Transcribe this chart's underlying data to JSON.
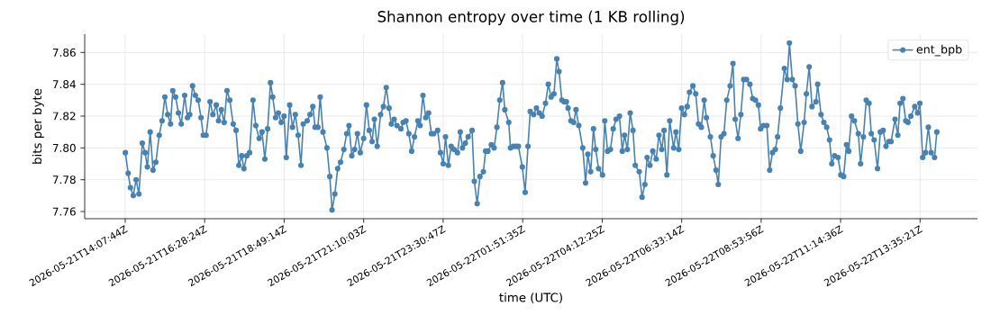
{
  "chart_data": {
    "type": "line",
    "title": "Shannon entropy over time (1 KB rolling)",
    "xlabel": "time (UTC)",
    "ylabel": "bits per byte",
    "x": [
      "2026-05-21T14:08",
      "2026-05-21T14:13",
      "2026-05-21T14:17",
      "2026-05-21T14:22",
      "2026-05-21T14:27",
      "2026-05-21T14:32",
      "2026-05-21T14:38",
      "2026-05-21T14:43",
      "2026-05-21T14:47",
      "2026-05-21T14:52",
      "2026-05-21T14:57",
      "2026-05-21T15:02",
      "2026-05-21T15:08",
      "2026-05-21T15:13",
      "2026-05-21T15:18",
      "2026-05-21T15:23",
      "2026-05-21T15:28",
      "2026-05-21T15:32",
      "2026-05-21T15:37",
      "2026-05-21T15:42",
      "2026-05-21T15:47",
      "2026-05-21T15:53",
      "2026-05-21T15:58",
      "2026-05-21T16:02",
      "2026-05-21T16:07",
      "2026-05-21T16:12",
      "2026-05-21T16:17",
      "2026-05-21T16:22",
      "2026-05-21T16:26",
      "2026-05-21T16:31",
      "2026-05-21T16:38",
      "2026-05-21T16:43",
      "2026-05-21T16:49",
      "2026-05-21T16:53",
      "2026-05-21T16:58",
      "2026-05-21T17:03",
      "2026-05-21T17:08",
      "2026-05-21T17:13",
      "2026-05-21T17:19",
      "2026-05-21T17:24",
      "2026-05-21T17:29",
      "2026-05-21T17:34",
      "2026-05-21T17:38",
      "2026-05-21T17:43",
      "2026-05-21T17:48",
      "2026-05-21T17:54",
      "2026-05-21T17:59",
      "2026-05-21T18:05",
      "2026-05-21T18:10",
      "2026-05-21T18:15",
      "2026-05-21T18:20",
      "2026-05-21T18:25",
      "2026-05-21T18:29",
      "2026-05-21T18:34",
      "2026-05-21T18:39",
      "2026-05-21T18:44",
      "2026-05-21T18:49",
      "2026-05-21T18:53",
      "2026-05-21T18:59",
      "2026-05-21T19:04",
      "2026-05-21T19:09",
      "2026-05-21T19:14",
      "2026-05-21T19:19",
      "2026-05-21T19:23",
      "2026-05-21T19:30",
      "2026-05-21T19:35",
      "2026-05-21T19:40",
      "2026-05-21T19:44",
      "2026-05-21T19:49",
      "2026-05-21T19:53",
      "2026-05-21T19:58",
      "2026-05-21T20:05",
      "2026-05-21T20:10",
      "2026-05-21T20:14",
      "2026-05-21T20:19",
      "2026-05-21T20:24",
      "2026-05-21T20:29",
      "2026-05-21T20:35",
      "2026-05-21T20:40",
      "2026-05-21T20:44",
      "2026-05-21T20:49",
      "2026-05-21T20:54",
      "2026-05-21T20:59",
      "2026-05-21T21:04",
      "2026-05-21T21:10",
      "2026-05-21T21:15",
      "2026-05-21T21:20",
      "2026-05-21T21:25",
      "2026-05-21T21:29",
      "2026-05-21T21:34",
      "2026-05-21T21:40",
      "2026-05-21T21:45",
      "2026-05-21T21:50",
      "2026-05-21T21:55",
      "2026-05-21T21:59",
      "2026-05-21T22:04",
      "2026-05-21T22:09",
      "2026-05-21T22:16",
      "2026-05-21T22:20",
      "2026-05-21T22:25",
      "2026-05-21T22:30",
      "2026-05-21T22:35",
      "2026-05-21T22:40",
      "2026-05-21T22:46",
      "2026-05-21T22:50",
      "2026-05-21T22:55",
      "2026-05-21T23:00",
      "2026-05-21T23:05",
      "2026-05-21T23:10",
      "2026-05-21T23:14",
      "2026-05-21T23:21",
      "2026-05-21T23:26",
      "2026-05-21T23:31",
      "2026-05-21T23:35",
      "2026-05-21T23:40",
      "2026-05-21T23:45",
      "2026-05-21T23:50",
      "2026-05-21T23:56",
      "2026-05-22T00:01",
      "2026-05-22T00:05",
      "2026-05-22T00:10",
      "2026-05-22T00:15",
      "2026-05-22T00:22",
      "2026-05-22T00:26",
      "2026-05-22T00:31",
      "2026-05-22T00:36",
      "2026-05-22T00:42",
      "2026-05-22T00:46",
      "2026-05-22T00:50",
      "2026-05-22T00:56",
      "2026-05-22T01:01",
      "2026-05-22T01:06",
      "2026-05-22T01:11",
      "2026-05-22T01:16",
      "2026-05-22T01:20",
      "2026-05-22T01:27",
      "2026-05-22T01:30",
      "2026-05-22T01:35",
      "2026-05-22T01:40",
      "2026-05-22T01:44",
      "2026-05-22T01:51",
      "2026-05-22T01:56",
      "2026-05-22T02:01",
      "2026-05-22T02:05",
      "2026-05-22T02:11",
      "2026-05-22T02:16",
      "2026-05-22T02:21",
      "2026-05-22T02:26",
      "2026-05-22T02:32",
      "2026-05-22T02:37",
      "2026-05-22T02:42",
      "2026-05-22T02:47",
      "2026-05-22T02:52",
      "2026-05-22T02:56",
      "2026-05-22T03:01",
      "2026-05-22T03:05",
      "2026-05-22T03:09",
      "2026-05-22T03:12",
      "2026-05-22T03:17",
      "2026-05-22T03:22",
      "2026-05-22T03:26",
      "2026-05-22T03:31",
      "2026-05-22T03:38",
      "2026-05-22T03:43",
      "2026-05-22T03:47",
      "2026-05-22T03:52",
      "2026-05-22T03:57",
      "2026-05-22T04:01",
      "2026-05-22T04:06",
      "2026-05-22T04:13",
      "2026-05-22T04:17",
      "2026-05-22T04:22",
      "2026-05-22T04:27",
      "2026-05-22T04:32",
      "2026-05-22T04:37",
      "2026-05-22T04:43",
      "2026-05-22T04:48",
      "2026-05-22T04:52",
      "2026-05-22T04:57",
      "2026-05-22T05:02",
      "2026-05-22T05:07",
      "2026-05-22T05:11",
      "2026-05-22T05:18",
      "2026-05-22T05:23",
      "2026-05-22T05:28",
      "2026-05-22T05:32",
      "2026-05-22T05:37",
      "2026-05-22T05:42",
      "2026-05-22T05:48",
      "2026-05-22T05:53",
      "2026-05-22T05:58",
      "2026-05-22T06:02",
      "2026-05-22T06:07",
      "2026-05-22T06:12",
      "2026-05-22T06:19",
      "2026-05-22T06:23",
      "2026-05-22T06:28",
      "2026-05-22T06:33",
      "2026-05-22T06:38",
      "2026-05-22T06:43",
      "2026-05-22T06:47",
      "2026-05-22T06:53",
      "2026-05-22T06:58",
      "2026-05-22T07:03",
      "2026-05-22T07:08",
      "2026-05-22T07:13",
      "2026-05-22T07:17",
      "2026-05-22T07:24",
      "2026-05-22T07:29",
      "2026-05-22T07:34",
      "2026-05-22T07:38",
      "2026-05-22T07:43",
      "2026-05-22T07:48",
      "2026-05-22T07:53",
      "2026-05-22T07:59",
      "2026-05-22T08:04",
      "2026-05-22T08:08",
      "2026-05-22T08:13",
      "2026-05-22T08:18",
      "2026-05-22T08:23",
      "2026-05-22T08:28",
      "2026-05-22T08:34",
      "2026-05-22T08:39",
      "2026-05-22T08:44",
      "2026-05-22T08:49",
      "2026-05-22T08:53",
      "2026-05-22T08:58",
      "2026-05-22T09:04",
      "2026-05-22T09:09",
      "2026-05-22T09:14",
      "2026-05-22T09:19",
      "2026-05-22T09:23",
      "2026-05-22T09:28",
      "2026-05-22T09:35",
      "2026-05-22T09:40",
      "2026-05-22T09:44",
      "2026-05-22T09:49",
      "2026-05-22T09:54",
      "2026-05-22T09:59",
      "2026-05-22T10:04",
      "2026-05-22T10:10",
      "2026-05-22T10:14",
      "2026-05-22T10:19",
      "2026-05-22T10:24",
      "2026-05-22T10:31",
      "2026-05-22T10:34",
      "2026-05-22T10:40",
      "2026-05-22T10:45",
      "2026-05-22T10:50",
      "2026-05-22T10:55",
      "2026-05-22T10:59",
      "2026-05-22T11:04",
      "2026-05-22T11:10",
      "2026-05-22T11:15",
      "2026-05-22T11:20",
      "2026-05-22T11:25",
      "2026-05-22T11:29",
      "2026-05-22T11:34",
      "2026-05-22T11:39",
      "2026-05-22T11:46",
      "2026-05-22T11:50",
      "2026-05-22T11:55",
      "2026-05-22T12:00",
      "2026-05-22T12:05",
      "2026-05-22T12:09",
      "2026-05-22T12:14",
      "2026-05-22T12:20",
      "2026-05-22T12:25",
      "2026-05-22T12:30",
      "2026-05-22T12:35",
      "2026-05-22T12:40",
      "2026-05-22T12:44",
      "2026-05-22T12:51",
      "2026-05-22T12:56",
      "2026-05-22T13:00",
      "2026-05-22T13:05",
      "2026-05-22T13:10",
      "2026-05-22T13:14",
      "2026-05-22T13:19",
      "2026-05-22T13:26",
      "2026-05-22T13:31",
      "2026-05-22T13:35",
      "2026-05-22T13:40",
      "2026-05-22T13:45",
      "2026-05-22T13:50",
      "2026-05-22T13:55",
      "2026-05-22T14:01",
      "2026-05-22T14:05"
    ],
    "series": [
      {
        "name": "ent_bpb",
        "color": "#4682b4",
        "values": [
          7.797,
          7.784,
          7.775,
          7.77,
          7.78,
          7.771,
          7.803,
          7.797,
          7.788,
          7.81,
          7.786,
          7.791,
          7.808,
          7.817,
          7.832,
          7.821,
          7.815,
          7.836,
          7.832,
          7.822,
          7.815,
          7.833,
          7.819,
          7.821,
          7.839,
          7.833,
          7.83,
          7.819,
          7.808,
          7.808,
          7.829,
          7.821,
          7.827,
          7.817,
          7.824,
          7.816,
          7.836,
          7.83,
          7.815,
          7.811,
          7.789,
          7.795,
          7.787,
          7.795,
          7.797,
          7.83,
          7.814,
          7.806,
          7.81,
          7.793,
          7.812,
          7.841,
          7.832,
          7.819,
          7.822,
          7.816,
          7.82,
          7.794,
          7.827,
          7.813,
          7.821,
          7.808,
          7.789,
          7.815,
          7.817,
          7.821,
          7.826,
          7.813,
          7.813,
          7.832,
          7.81,
          7.8,
          7.782,
          7.761,
          7.771,
          7.787,
          7.791,
          7.799,
          7.809,
          7.814,
          7.795,
          7.799,
          7.809,
          7.797,
          7.806,
          7.827,
          7.811,
          7.804,
          7.818,
          7.801,
          7.821,
          7.826,
          7.838,
          7.825,
          7.815,
          7.818,
          7.814,
          7.812,
          7.816,
          7.817,
          7.809,
          7.798,
          7.807,
          7.817,
          7.814,
          7.833,
          7.819,
          7.822,
          7.809,
          7.809,
          7.811,
          7.797,
          7.79,
          7.807,
          7.789,
          7.801,
          7.799,
          7.797,
          7.81,
          7.8,
          7.803,
          7.807,
          7.811,
          7.779,
          7.765,
          7.782,
          7.785,
          7.798,
          7.798,
          7.802,
          7.8,
          7.813,
          7.83,
          7.841,
          7.824,
          7.816,
          7.8,
          7.801,
          7.801,
          7.801,
          7.788,
          7.772,
          7.801,
          7.823,
          7.821,
          7.825,
          7.822,
          7.82,
          7.828,
          7.84,
          7.832,
          7.834,
          7.856,
          7.848,
          7.83,
          7.829,
          7.829,
          7.825,
          7.817,
          7.816,
          7.824,
          7.814,
          7.8,
          7.778,
          7.796,
          7.785,
          7.812,
          7.799,
          7.787,
          7.783,
          7.817,
          7.798,
          7.799,
          7.812,
          7.818,
          7.82,
          7.798,
          7.808,
          7.799,
          7.822,
          7.811,
          7.789,
          7.785,
          7.769,
          7.777,
          7.794,
          7.789,
          7.798,
          7.793,
          7.808,
          7.799,
          7.811,
          7.783,
          7.817,
          7.8,
          7.81,
          7.799,
          7.825,
          7.821,
          7.826,
          7.835,
          7.839,
          7.834,
          7.815,
          7.813,
          7.83,
          7.819,
          7.807,
          7.795,
          7.786,
          7.777,
          7.807,
          7.809,
          7.83,
          7.839,
          7.853,
          7.818,
          7.806,
          7.821,
          7.843,
          7.843,
          7.84,
          7.831,
          7.83,
          7.827,
          7.812,
          7.814,
          7.814,
          7.786,
          7.797,
          7.799,
          7.807,
          7.825,
          7.85,
          7.843,
          7.866,
          7.843,
          7.839,
          7.815,
          7.798,
          7.816,
          7.834,
          7.851,
          7.826,
          7.829,
          7.84,
          7.821,
          7.816,
          7.813,
          7.805,
          7.79,
          7.795,
          7.794,
          7.783,
          7.782,
          7.802,
          7.798,
          7.82,
          7.817,
          7.809,
          7.79,
          7.807,
          7.83,
          7.828,
          7.809,
          7.805,
          7.787,
          7.81,
          7.811,
          7.801,
          7.804,
          7.804,
          7.818,
          7.808,
          7.828,
          7.831,
          7.817,
          7.816,
          7.82,
          7.826,
          7.822,
          7.828,
          7.794,
          7.797,
          7.813,
          7.797,
          7.794,
          7.81
        ]
      }
    ],
    "xlim": [
      "2026-05-21T12:56",
      "2026-05-22T15:17"
    ],
    "ylim": [
      7.7555,
      7.8715
    ],
    "xticks": [
      {
        "value": "2026-05-21T14:07:44",
        "label": "2026-05-21T14:07:44Z"
      },
      {
        "value": "2026-05-21T16:28:24",
        "label": "2026-05-21T16:28:24Z"
      },
      {
        "value": "2026-05-21T18:49:14",
        "label": "2026-05-21T18:49:14Z"
      },
      {
        "value": "2026-05-21T21:10:03",
        "label": "2026-05-21T21:10:03Z"
      },
      {
        "value": "2026-05-21T23:30:47",
        "label": "2026-05-21T23:30:47Z"
      },
      {
        "value": "2026-05-22T01:51:35",
        "label": "2026-05-22T01:51:35Z"
      },
      {
        "value": "2026-05-22T04:12:25",
        "label": "2026-05-22T04:12:25Z"
      },
      {
        "value": "2026-05-22T06:33:14",
        "label": "2026-05-22T06:33:14Z"
      },
      {
        "value": "2026-05-22T08:53:56",
        "label": "2026-05-22T08:53:56Z"
      },
      {
        "value": "2026-05-22T11:14:36",
        "label": "2026-05-22T11:14:36Z"
      },
      {
        "value": "2026-05-22T13:35:21",
        "label": "2026-05-22T13:35:21Z"
      }
    ],
    "yticks": [
      7.76,
      7.78,
      {
        "value": 7.8,
        "label": "7.80"
      },
      7.82,
      7.84,
      7.86
    ],
    "grid": true,
    "legend": "top right",
    "marker": "circle",
    "line_style": "solid"
  }
}
